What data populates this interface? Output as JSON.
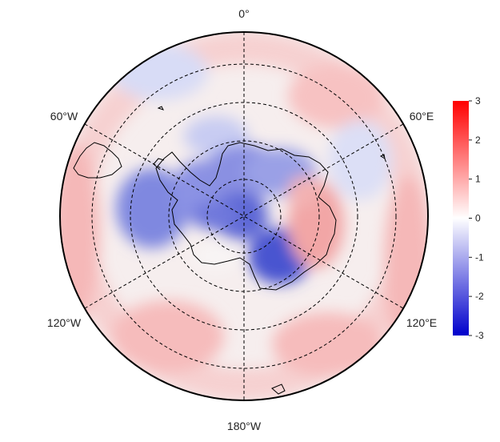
{
  "map": {
    "projection": "south-polar-stereographic",
    "lon_labels": {
      "top": "0°",
      "upper_right": "60°E",
      "lower_right": "120°E",
      "bottom": "180°W",
      "lower_left": "120°W",
      "upper_left": "60°W"
    }
  },
  "colorbar": {
    "min": -3,
    "max": 3,
    "ticks": [
      "3",
      "2",
      "1",
      "0",
      "-1",
      "-2",
      "-3"
    ],
    "colors": {
      "low": "#0000cc",
      "mid": "#ffffff",
      "high": "#ff0000"
    }
  },
  "field_summary": {
    "pattern": "negative (blue) anomalies over West Antarctica, Weddell Sea and central East Antarctica; positive (red) anomalies over Wilkes Land / Indian Ocean sector and outer ring"
  }
}
